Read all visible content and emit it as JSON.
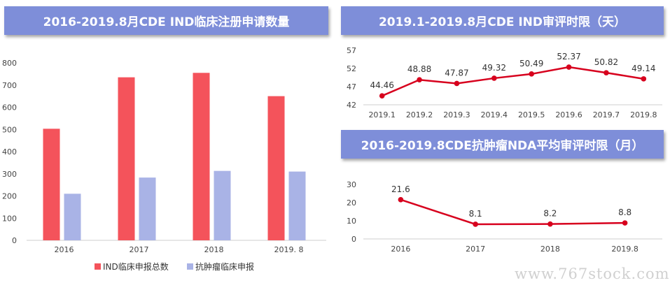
{
  "chart_data": [
    {
      "type": "bar",
      "title": "2016-2019.8月CDE IND临床注册申请数量",
      "categories": [
        "2016",
        "2017",
        "2018",
        "2019. 8"
      ],
      "series": [
        {
          "name": "IND临床申报总数",
          "color": "#f4535b",
          "values": [
            503,
            735,
            755,
            650
          ]
        },
        {
          "name": "抗肿瘤临床申报",
          "color": "#a9b3e6",
          "values": [
            210,
            283,
            313,
            310
          ]
        }
      ],
      "yticks": [
        "0",
        "100",
        "200",
        "300",
        "400",
        "500",
        "600",
        "700",
        "800"
      ],
      "ylim": [
        0,
        800
      ],
      "grid": false,
      "legend": "bottom"
    },
    {
      "type": "line",
      "title": "2019.1-2019.8月CDE IND审评时限（天）",
      "categories": [
        "2019.1",
        "2019.2",
        "2019.3",
        "2019.4",
        "2019.5",
        "2019.6",
        "2019.7",
        "2019.8"
      ],
      "series": [
        {
          "color": "#d7001d",
          "values": [
            44.46,
            48.88,
            47.87,
            49.32,
            50.49,
            52.37,
            50.82,
            49.14
          ],
          "labels": [
            "44.46",
            "48.88",
            "47.87",
            "49.32",
            "50.49",
            "52.37",
            "50.82",
            "49.14"
          ]
        }
      ],
      "yticks": [
        "42",
        "47",
        "52",
        "57"
      ],
      "ylim": [
        42,
        57
      ],
      "grid": false
    },
    {
      "type": "line",
      "title": "2016-2019.8CDE抗肿瘤NDA平均审评时限（月）",
      "categories": [
        "2016",
        "2017",
        "2018",
        "2019.8"
      ],
      "series": [
        {
          "color": "#d7001d",
          "values": [
            21.6,
            8.1,
            8.2,
            8.8
          ],
          "labels": [
            "21.6",
            "8.1",
            "8.2",
            "8.8"
          ]
        }
      ],
      "yticks": [
        "0",
        "10",
        "20",
        "30"
      ],
      "ylim": [
        0,
        30
      ],
      "grid": false
    }
  ],
  "watermark": "www.767stock.com"
}
